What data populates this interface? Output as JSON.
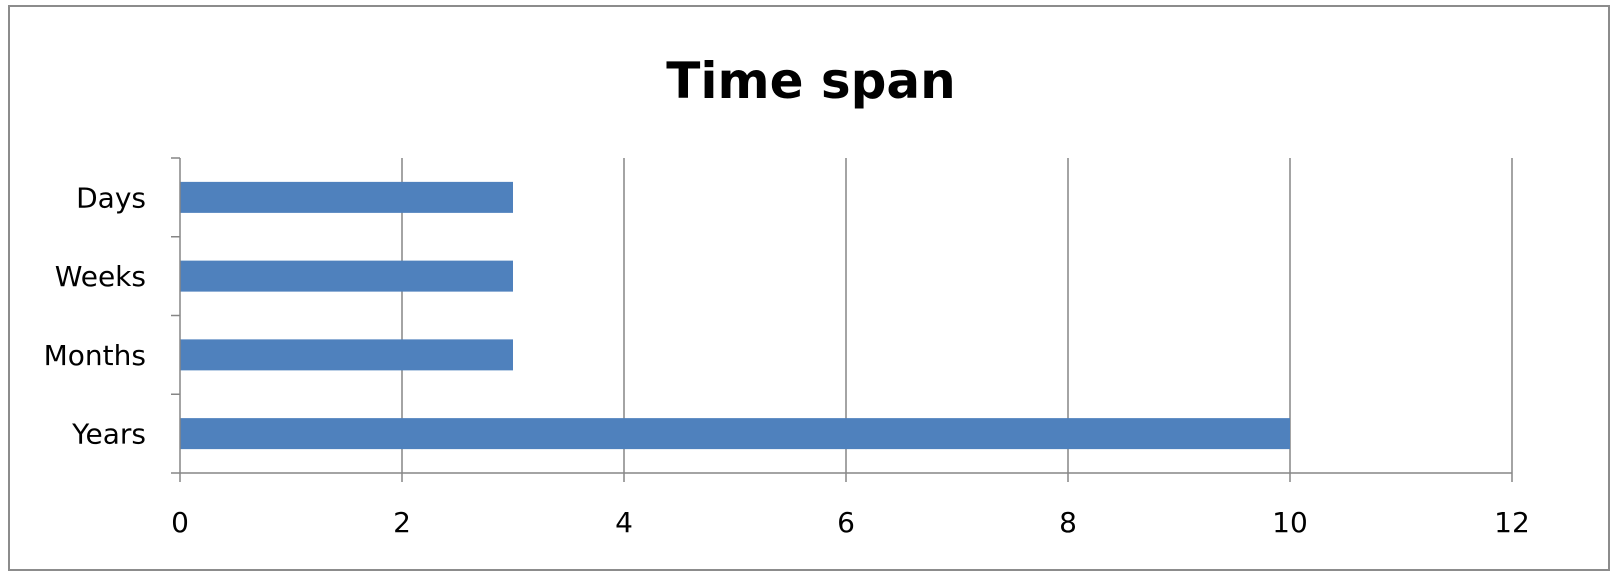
{
  "chart_data": {
    "type": "bar",
    "orientation": "horizontal",
    "title": "Time span",
    "xlabel": "",
    "ylabel": "",
    "categories": [
      "Days",
      "Weeks",
      "Months",
      "Years"
    ],
    "values": [
      3,
      3,
      3,
      10
    ],
    "xlim": [
      0,
      12
    ],
    "x_ticks": [
      "0",
      "2",
      "4",
      "6",
      "8",
      "10",
      "12"
    ],
    "grid": "vertical",
    "legend": "none",
    "bar_color": "#4F81BD",
    "grid_color": "#868686",
    "axis_color": "#868686"
  }
}
